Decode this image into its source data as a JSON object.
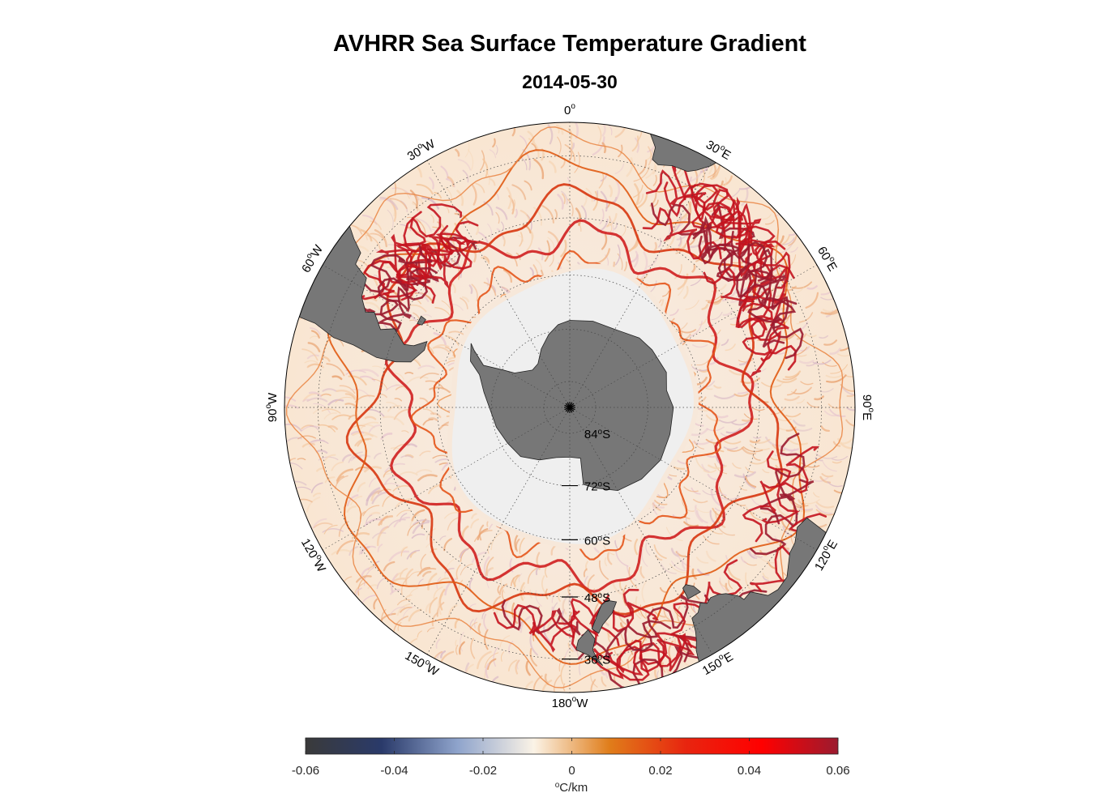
{
  "title": "AVHRR Sea Surface Temperature Gradient",
  "subtitle": "2014-05-30",
  "longitude_labels": [
    {
      "lon": 0,
      "text": "0",
      "sup": "o",
      "suffix": ""
    },
    {
      "lon": 30,
      "text": "30",
      "sup": "o",
      "suffix": "E"
    },
    {
      "lon": 60,
      "text": "60",
      "sup": "o",
      "suffix": "E"
    },
    {
      "lon": 90,
      "text": "90",
      "sup": "o",
      "suffix": "E"
    },
    {
      "lon": 120,
      "text": "120",
      "sup": "o",
      "suffix": "E"
    },
    {
      "lon": 150,
      "text": "150",
      "sup": "o",
      "suffix": "E"
    },
    {
      "lon": 180,
      "text": "180",
      "sup": "o",
      "suffix": "W"
    },
    {
      "lon": -150,
      "text": "150",
      "sup": "o",
      "suffix": "W"
    },
    {
      "lon": -120,
      "text": "120",
      "sup": "o",
      "suffix": "W"
    },
    {
      "lon": -90,
      "text": "90",
      "sup": "o",
      "suffix": "W"
    },
    {
      "lon": -60,
      "text": "60",
      "sup": "o",
      "suffix": "W"
    },
    {
      "lon": -30,
      "text": "30",
      "sup": "o",
      "suffix": "W"
    }
  ],
  "latitude_labels": [
    {
      "lat": -84,
      "text": "84",
      "sup": "o",
      "suffix": "S"
    },
    {
      "lat": -72,
      "text": "72",
      "sup": "o",
      "suffix": "S"
    },
    {
      "lat": -60,
      "text": "60",
      "sup": "o",
      "suffix": "S"
    },
    {
      "lat": -48,
      "text": "48",
      "sup": "o",
      "suffix": "S"
    },
    {
      "lat": -36,
      "text": "36",
      "sup": "o",
      "suffix": "S"
    }
  ],
  "map": {
    "projection": "south-polar stereographic",
    "lat_limit": -30,
    "land_color": "#777777",
    "sea_ice_color": "#efefef",
    "graticule_color": "#444444"
  },
  "colorbar": {
    "ticks": [
      "-0.06",
      "-0.04",
      "-0.02",
      "0",
      "0.02",
      "0.04",
      "0.06"
    ],
    "tick_values": [
      -0.06,
      -0.04,
      -0.02,
      0,
      0.02,
      0.04,
      0.06
    ],
    "range": [
      -0.06,
      0.06
    ],
    "label": "C/km",
    "label_sup": "o",
    "colors": [
      "#3a3a3a",
      "#2a3a6a",
      "#8fa4cc",
      "#fbf3e6",
      "#e07d1a",
      "#e8250f",
      "#ff0000",
      "#9b1b2f"
    ]
  }
}
